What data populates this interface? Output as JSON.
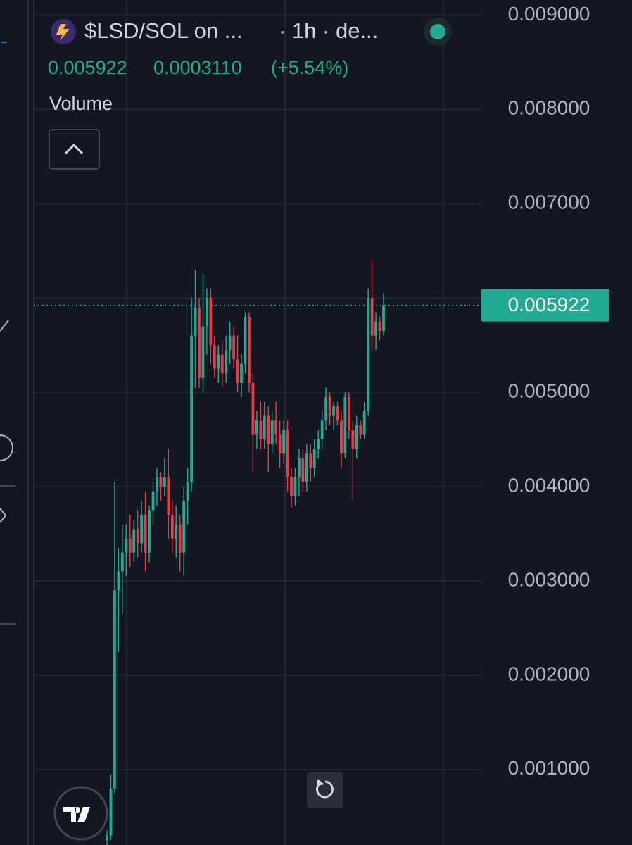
{
  "header": {
    "symbol": "$LSD/SOL on ...",
    "interval": "· 1h · de...",
    "price": "0.005922",
    "change": "0.0003110",
    "change_pct": "(+5.54%)",
    "indicator": "Volume"
  },
  "chart_data": {
    "type": "candlestick",
    "open": [
      0.00025,
      0.0003,
      0.0008,
      0.0029,
      0.0031,
      0.0033,
      0.00345,
      0.0033,
      0.00355,
      0.0034,
      0.0037,
      0.0033,
      0.00375,
      0.00395,
      0.0041,
      0.004,
      0.0041,
      0.0037,
      0.00345,
      0.0036,
      0.0033,
      0.00385,
      0.00405,
      0.0056,
      0.0059,
      0.00515,
      0.0057,
      0.006,
      0.0055,
      0.00525,
      0.0054,
      0.0052,
      0.00545,
      0.0056,
      0.00535,
      0.0051,
      0.0053,
      0.0058,
      0.0051,
      0.00455,
      0.0047,
      0.0045,
      0.00475,
      0.00445,
      0.0047,
      0.00455,
      0.00435,
      0.0046,
      0.0041,
      0.0039,
      0.0041,
      0.0043,
      0.00405,
      0.00435,
      0.0042,
      0.0044,
      0.0045,
      0.0047,
      0.00495,
      0.00475,
      0.00485,
      0.0047,
      0.00435,
      0.00495,
      0.0046,
      0.0044,
      0.00465,
      0.00455,
      0.0048,
      0.006,
      0.0056,
      0.00575,
      0.00565
    ],
    "high": [
      0.00035,
      0.00095,
      0.00405,
      0.00335,
      0.0036,
      0.0036,
      0.0037,
      0.00365,
      0.00375,
      0.00385,
      0.00395,
      0.0038,
      0.00405,
      0.0042,
      0.00415,
      0.0043,
      0.0044,
      0.00385,
      0.0038,
      0.0037,
      0.004,
      0.0042,
      0.006,
      0.0063,
      0.006,
      0.00625,
      0.0061,
      0.0061,
      0.0056,
      0.0055,
      0.00555,
      0.0056,
      0.00575,
      0.0057,
      0.0056,
      0.0054,
      0.00585,
      0.00585,
      0.0052,
      0.0048,
      0.0049,
      0.0049,
      0.00485,
      0.0048,
      0.0049,
      0.0047,
      0.0047,
      0.0047,
      0.0042,
      0.0042,
      0.0044,
      0.0044,
      0.00445,
      0.00445,
      0.0045,
      0.0046,
      0.0048,
      0.00505,
      0.005,
      0.0049,
      0.0049,
      0.0048,
      0.005,
      0.005,
      0.0047,
      0.00475,
      0.0047,
      0.0049,
      0.0061,
      0.0064,
      0.00585,
      0.0058,
      0.00605
    ],
    "low": [
      0.0002,
      0.00025,
      0.00075,
      0.00225,
      0.00265,
      0.00305,
      0.00315,
      0.0032,
      0.00325,
      0.0033,
      0.0031,
      0.0032,
      0.0036,
      0.0038,
      0.00385,
      0.0039,
      0.00345,
      0.0033,
      0.00325,
      0.0031,
      0.00305,
      0.0036,
      0.00395,
      0.00505,
      0.00505,
      0.005,
      0.0054,
      0.0053,
      0.00515,
      0.0051,
      0.00505,
      0.0051,
      0.0053,
      0.00525,
      0.005,
      0.00495,
      0.0052,
      0.005,
      0.00415,
      0.0044,
      0.0044,
      0.0044,
      0.00415,
      0.00435,
      0.00445,
      0.0042,
      0.00425,
      0.00395,
      0.00378,
      0.0038,
      0.0039,
      0.00395,
      0.00395,
      0.00405,
      0.0041,
      0.0043,
      0.0044,
      0.0046,
      0.00465,
      0.0046,
      0.00465,
      0.0042,
      0.0043,
      0.0045,
      0.00385,
      0.0043,
      0.0045,
      0.0045,
      0.00475,
      0.00545,
      0.00545,
      0.00555,
      0.0056
    ],
    "close": [
      0.0003,
      0.0008,
      0.0029,
      0.0031,
      0.0033,
      0.00345,
      0.0033,
      0.00355,
      0.0034,
      0.0037,
      0.0033,
      0.00375,
      0.00395,
      0.0041,
      0.004,
      0.0041,
      0.0037,
      0.00345,
      0.0036,
      0.0033,
      0.00385,
      0.00405,
      0.0056,
      0.0059,
      0.00515,
      0.0057,
      0.006,
      0.0055,
      0.00525,
      0.0054,
      0.0052,
      0.00545,
      0.0056,
      0.00535,
      0.0051,
      0.0053,
      0.0058,
      0.0051,
      0.00455,
      0.0047,
      0.0045,
      0.00475,
      0.00445,
      0.0047,
      0.00455,
      0.00435,
      0.0046,
      0.0041,
      0.0039,
      0.0041,
      0.0043,
      0.00405,
      0.00435,
      0.0042,
      0.0044,
      0.0045,
      0.0047,
      0.00495,
      0.00475,
      0.00485,
      0.0047,
      0.00435,
      0.00495,
      0.0046,
      0.0044,
      0.00465,
      0.00455,
      0.0048,
      0.006,
      0.0056,
      0.00575,
      0.00565,
      0.005922
    ],
    "up_color": "#22ab94",
    "down_color": "#f23645",
    "ylim": [
      0.0002,
      0.00916
    ],
    "yticks": [
      {
        "value": 0.001,
        "label": "0.001000"
      },
      {
        "value": 0.002,
        "label": "0.002000"
      },
      {
        "value": 0.003,
        "label": "0.003000"
      },
      {
        "value": 0.004,
        "label": "0.004000"
      },
      {
        "value": 0.005,
        "label": "0.005000"
      },
      {
        "value": 0.006,
        "label": "0.006000"
      },
      {
        "value": 0.007,
        "label": "0.007000"
      },
      {
        "value": 0.008,
        "label": "0.008000"
      },
      {
        "value": 0.009,
        "label": "0.009000"
      }
    ],
    "last_price": {
      "value": 0.005922,
      "label": "0.005922"
    },
    "grid": true
  }
}
